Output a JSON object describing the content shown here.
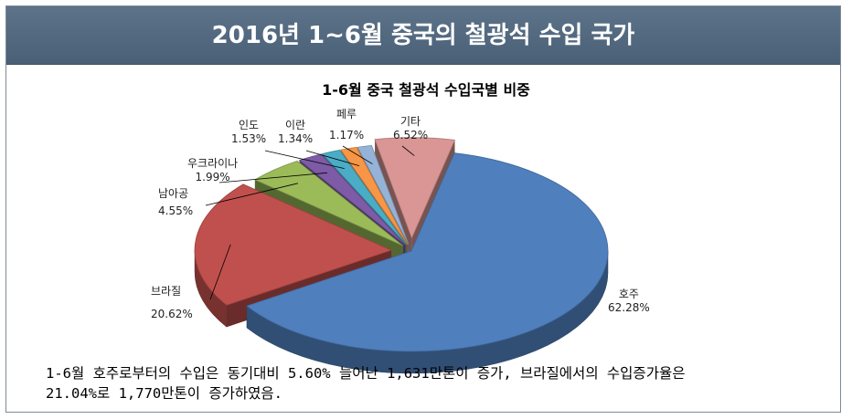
{
  "header": {
    "title": "2016년 1~6월 중국의 철광석 수입 국가"
  },
  "chart_data": {
    "type": "pie",
    "title": "1-6월 중국 철광석 수입국별 비중",
    "slices": [
      {
        "label": "호주",
        "value": 62.28,
        "value_text": "62.28%",
        "color": "#4f7fbd"
      },
      {
        "label": "브라질",
        "value": 20.62,
        "value_text": "20.62%",
        "color": "#c0504d"
      },
      {
        "label": "남아공",
        "value": 4.55,
        "value_text": "4.55%",
        "color": "#9bbb59"
      },
      {
        "label": "우크라이나",
        "value": 1.99,
        "value_text": "1.99%",
        "color": "#7d5ba6"
      },
      {
        "label": "인도",
        "value": 1.53,
        "value_text": "1.53%",
        "color": "#4bacc6"
      },
      {
        "label": "이란",
        "value": 1.34,
        "value_text": "1.34%",
        "color": "#f79646"
      },
      {
        "label": "페루",
        "value": 1.17,
        "value_text": "1.17%",
        "color": "#95b3d7"
      },
      {
        "label": "기타",
        "value": 6.52,
        "value_text": "6.52%",
        "color": "#d99694"
      }
    ]
  },
  "note": {
    "line1": "1-6월 호주로부터의 수입은 동기대비 5.60% 늘어난 1,631만톤이 증가, 브라질에서의 수입증가율은",
    "line2": "21.04%로 1,770만톤이 증가하였음."
  }
}
